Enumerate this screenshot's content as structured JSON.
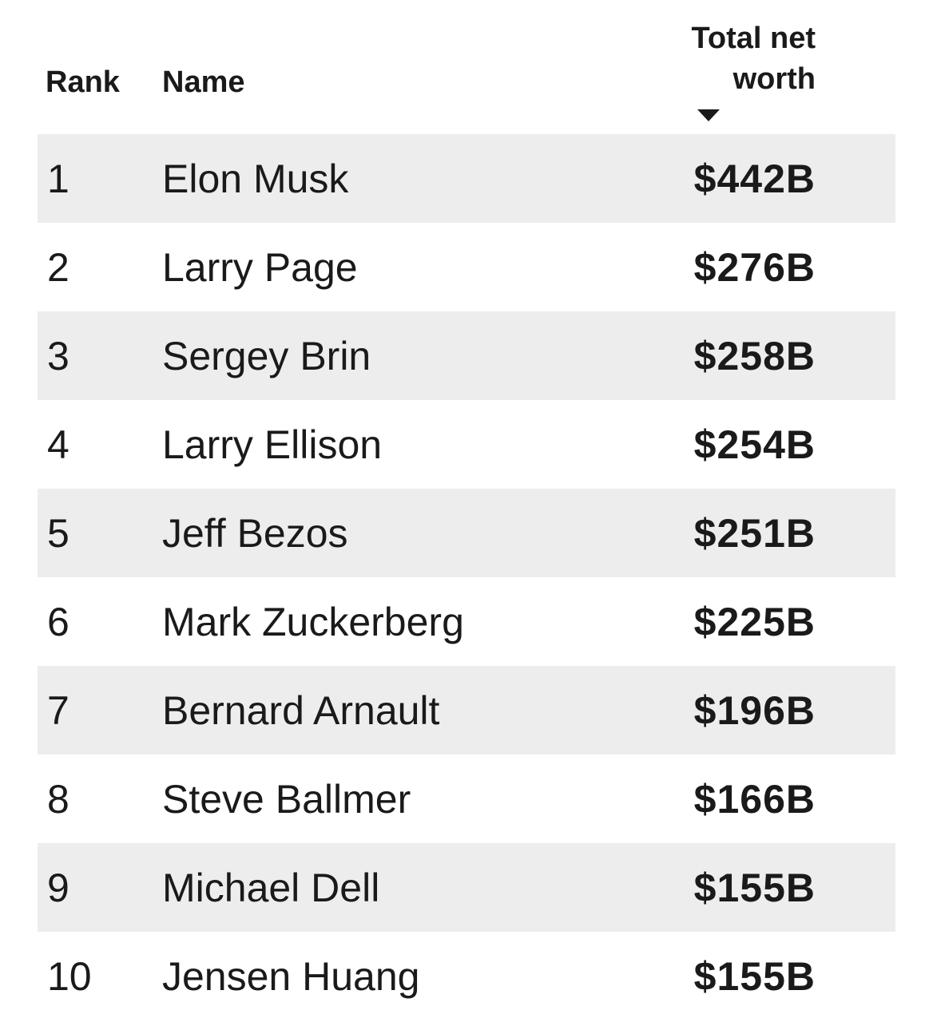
{
  "colors": {
    "background": "#ffffff",
    "row_stripe": "#ededed",
    "text": "#1a1a1a",
    "sort_arrow": "#1a1a1a"
  },
  "table": {
    "header": {
      "rank_label": "Rank",
      "name_label": "Name",
      "net_worth_label": "Total net\nworth",
      "sort_icon": "sort-desc-triangle-icon",
      "sorted_by": "Total net worth",
      "sort_direction": "descending"
    },
    "rows": [
      {
        "rank": "1",
        "name": "Elon Musk",
        "net_worth": "$442B"
      },
      {
        "rank": "2",
        "name": "Larry Page",
        "net_worth": "$276B"
      },
      {
        "rank": "3",
        "name": "Sergey Brin",
        "net_worth": "$258B"
      },
      {
        "rank": "4",
        "name": "Larry Ellison",
        "net_worth": "$254B"
      },
      {
        "rank": "5",
        "name": "Jeff Bezos",
        "net_worth": "$251B"
      },
      {
        "rank": "6",
        "name": "Mark Zuckerberg",
        "net_worth": "$225B"
      },
      {
        "rank": "7",
        "name": "Bernard Arnault",
        "net_worth": "$196B"
      },
      {
        "rank": "8",
        "name": "Steve Ballmer",
        "net_worth": "$166B"
      },
      {
        "rank": "9",
        "name": "Michael Dell",
        "net_worth": "$155B"
      },
      {
        "rank": "10",
        "name": "Jensen Huang",
        "net_worth": "$155B"
      }
    ]
  },
  "chart_data": {
    "type": "table",
    "title": "",
    "columns": [
      "Rank",
      "Name",
      "Total net worth"
    ],
    "categories": [
      "Elon Musk",
      "Larry Page",
      "Sergey Brin",
      "Larry Ellison",
      "Jeff Bezos",
      "Mark Zuckerberg",
      "Bernard Arnault",
      "Steve Ballmer",
      "Michael Dell",
      "Jensen Huang"
    ],
    "series": [
      {
        "name": "Total net worth ($B)",
        "values": [
          442,
          276,
          258,
          254,
          251,
          225,
          196,
          166,
          155,
          155
        ]
      }
    ],
    "sort": {
      "column": "Total net worth",
      "direction": "desc"
    },
    "layout": {
      "striped_rows": true,
      "stripe_color": "#ededed",
      "value_format": "$NNNB"
    }
  }
}
